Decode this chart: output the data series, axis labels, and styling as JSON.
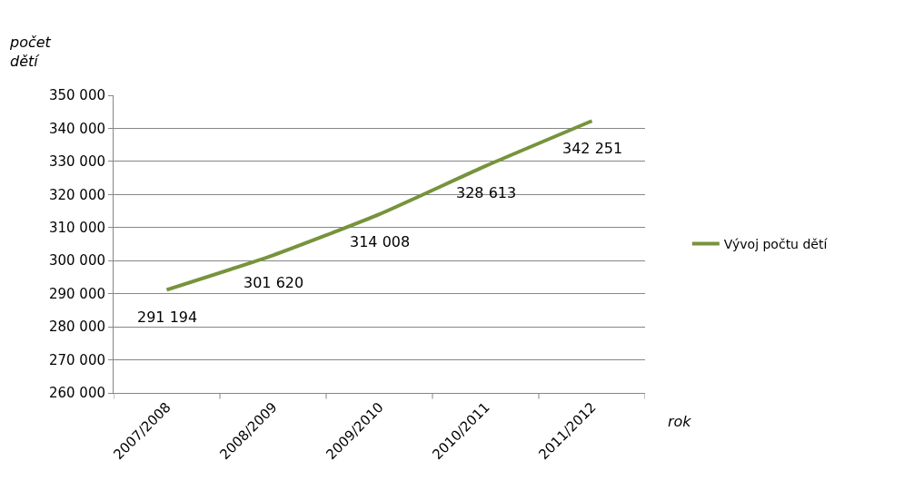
{
  "chart_data": {
    "type": "line",
    "categories": [
      "2007/2008",
      "2008/2009",
      "2009/2010",
      "2010/2011",
      "2011/2012"
    ],
    "series": [
      {
        "name": "Vývoj počtu dětí",
        "color": "#77933c",
        "values": [
          291194,
          301620,
          314008,
          328613,
          342251
        ],
        "value_labels": [
          "291 194",
          "301 620",
          "314 008",
          "328 613",
          "342 251"
        ]
      }
    ],
    "xlabel": "rok",
    "ylabel": "počet dětí",
    "ylim": [
      260000,
      350000
    ],
    "yticks": [
      {
        "value": 260000,
        "label": "260 000"
      },
      {
        "value": 270000,
        "label": "270 000"
      },
      {
        "value": 280000,
        "label": "280 000"
      },
      {
        "value": 290000,
        "label": "290 000"
      },
      {
        "value": 300000,
        "label": "300 000"
      },
      {
        "value": 310000,
        "label": "310 000"
      },
      {
        "value": 320000,
        "label": "320 000"
      },
      {
        "value": 330000,
        "label": "330 000"
      },
      {
        "value": 340000,
        "label": "340 000"
      },
      {
        "value": 350000,
        "label": "350 000"
      }
    ],
    "grid": "y",
    "legend": "right",
    "marker": "none",
    "line_style": "solid"
  }
}
